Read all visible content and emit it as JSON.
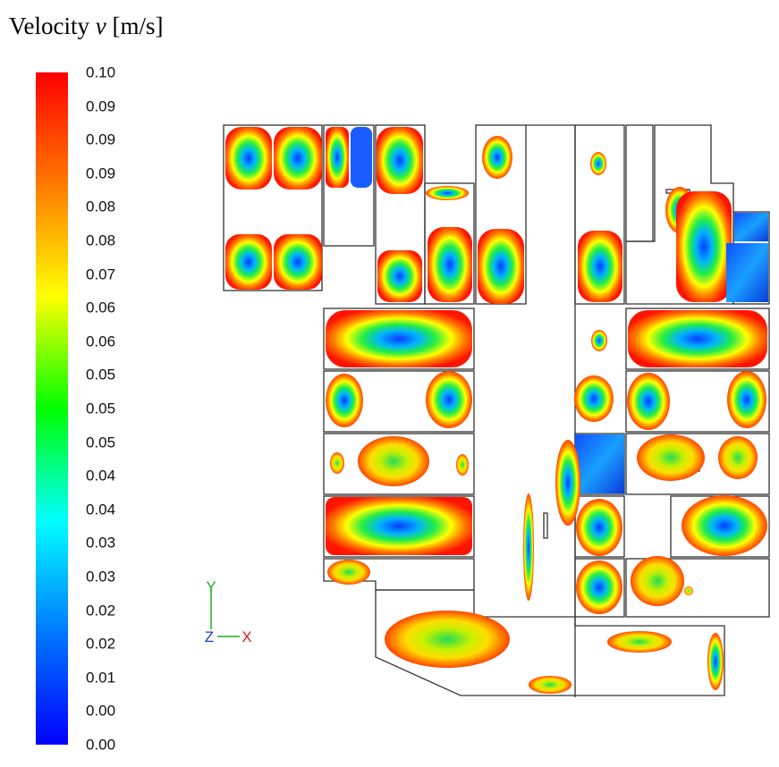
{
  "legend": {
    "title_prefix": "Velocity ",
    "title_var": "v",
    "title_unit": " [m/s]",
    "ticks": [
      "0.10",
      "0.09",
      "0.09",
      "0.09",
      "0.08",
      "0.08",
      "0.07",
      "0.06",
      "0.06",
      "0.05",
      "0.05",
      "0.05",
      "0.04",
      "0.04",
      "0.03",
      "0.03",
      "0.02",
      "0.02",
      "0.01",
      "0.00",
      "0.00"
    ],
    "colors": [
      "#ff0000",
      "#ff7a00",
      "#ffff00",
      "#00ff00",
      "#00ffff",
      "#0078ff",
      "#0000ff"
    ]
  },
  "axes": {
    "y_label": "Y",
    "z_label": "Z",
    "x_label": "X",
    "color": "#19b219"
  }
}
